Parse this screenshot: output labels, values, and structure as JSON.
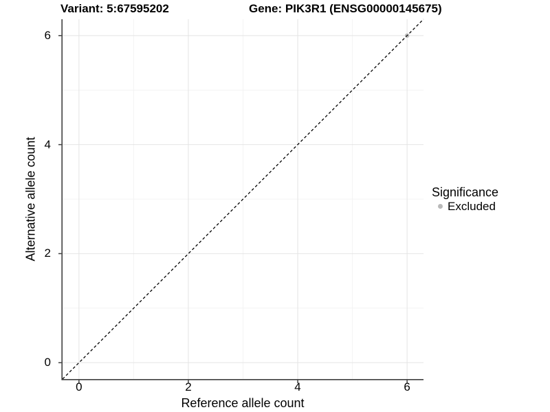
{
  "chart_data": {
    "type": "scatter",
    "title_variant": "Variant: 5:67595202",
    "title_gene": "Gene: PIK3R1 (ENSG00000145675)",
    "xlabel": "Reference allele count",
    "ylabel": "Alternative allele count",
    "xlim": [
      -0.3,
      6.3
    ],
    "ylim": [
      -0.3,
      6.3
    ],
    "xticks": [
      0,
      2,
      4,
      6
    ],
    "yticks": [
      0,
      2,
      4,
      6
    ],
    "x_minor_gridlines": [
      1,
      3,
      5
    ],
    "y_minor_gridlines": [
      1,
      3,
      5
    ],
    "grid": "major and minor, light gray, on white panel",
    "points": [
      {
        "x": 6,
        "y": 6,
        "significance": "Excluded"
      }
    ],
    "identity_line": {
      "slope": 1,
      "intercept": 0,
      "style": "dashed",
      "color": "#000000"
    },
    "legend": {
      "title": "Significance",
      "position": "right",
      "entries": [
        {
          "label": "Excluded",
          "color": "#b9b9b9",
          "marker": "circle"
        }
      ]
    },
    "style": {
      "background": "#ffffff",
      "grid_major": "#e4e4e4",
      "grid_minor": "#f3f3f3",
      "axis_line": "#3f3f3f",
      "tick_color": "#3f3f3f",
      "point_color": "#b9b9b9",
      "dashed_line_color": "#000000",
      "text_color": "#000000"
    }
  }
}
